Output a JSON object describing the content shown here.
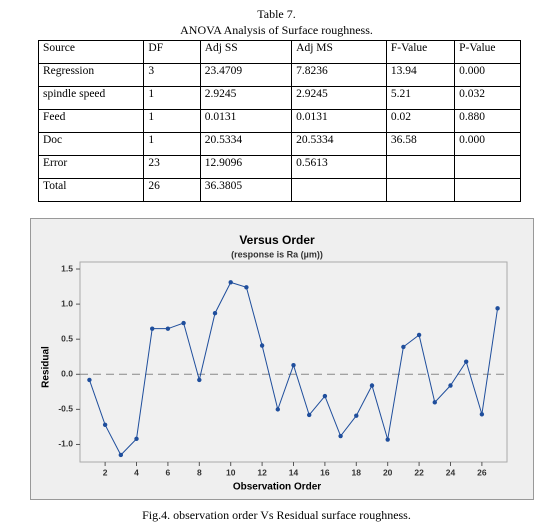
{
  "table": {
    "caption": "Table 7.",
    "title": "ANOVA Analysis of Surface roughness.",
    "header": [
      "Source",
      "DF",
      "Adj SS",
      "Adj MS",
      "F-Value",
      "P-Value"
    ],
    "rows": [
      [
        "Regression",
        "3",
        "23.4709",
        "7.8236",
        "13.94",
        "0.000"
      ],
      [
        "spindle speed",
        "1",
        "2.9245",
        "2.9245",
        "5.21",
        "0.032"
      ],
      [
        "Feed",
        "1",
        "0.0131",
        "0.0131",
        "0.02",
        "0.880"
      ],
      [
        "Doc",
        "1",
        "20.5334",
        "20.5334",
        "36.58",
        "0.000"
      ],
      [
        "Error",
        "23",
        "12.9096",
        "0.5613",
        null,
        null
      ],
      [
        "Total",
        "26",
        "36.3805",
        null,
        null,
        null
      ]
    ]
  },
  "chart_data": {
    "type": "line",
    "title": "Versus Order",
    "subtitle": "(response is Ra (µm))",
    "x_label": "Observation Order",
    "y_label": "Residual",
    "x": [
      1,
      2,
      3,
      4,
      5,
      6,
      7,
      8,
      9,
      10,
      11,
      12,
      13,
      14,
      15,
      16,
      17,
      18,
      19,
      20,
      21,
      22,
      23,
      24,
      25,
      26,
      27
    ],
    "series": [
      {
        "color": "#1f4e9c",
        "values": [
          -0.08,
          -0.72,
          -1.15,
          -0.92,
          0.65,
          0.65,
          0.73,
          -0.08,
          0.87,
          1.31,
          1.24,
          0.41,
          -0.5,
          0.13,
          -0.58,
          -0.31,
          -0.88,
          -0.59,
          -0.16,
          -0.93,
          0.39,
          0.56,
          -0.4,
          -0.16,
          0.18,
          -0.57,
          0.94
        ]
      }
    ],
    "reference_line": 0,
    "xlim": [
      0.4,
      27.6
    ],
    "xticks": [
      2,
      4,
      6,
      8,
      10,
      12,
      14,
      16,
      18,
      20,
      22,
      24,
      26
    ],
    "ylim": [
      -1.25,
      1.6
    ],
    "yticks": [
      {
        "value": -1,
        "label": "-1.0"
      },
      {
        "value": -0.5,
        "label": "-0.5"
      },
      {
        "value": 0,
        "label": "0.0"
      },
      {
        "value": 0.5,
        "label": "0.5"
      },
      {
        "value": 1,
        "label": "1.0"
      },
      {
        "value": 1.5,
        "label": "1.5"
      }
    ]
  },
  "figure_caption": "Fig.4. observation order Vs Residual surface roughness."
}
